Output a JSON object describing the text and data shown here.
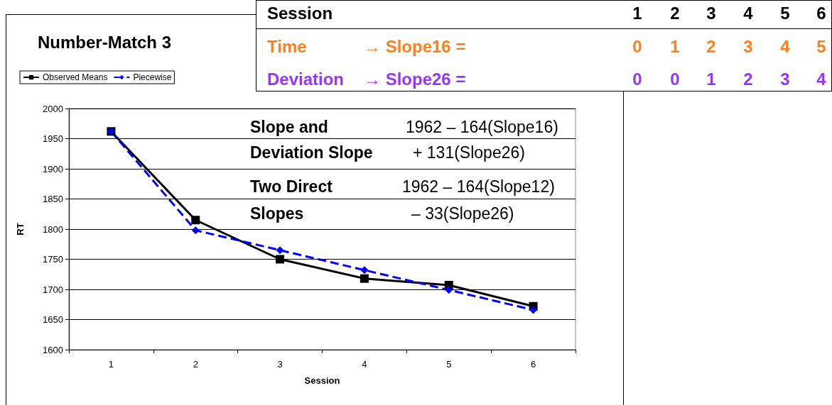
{
  "chart_data": {
    "type": "line",
    "title": "Number-Match 3",
    "xlabel": "Session",
    "ylabel": "RT",
    "categories": [
      "1",
      "2",
      "3",
      "4",
      "5",
      "6"
    ],
    "series": [
      {
        "name": "Observed Means",
        "color": "#000000",
        "marker": "square",
        "line_style": "solid",
        "values": [
          1962,
          1815,
          1750,
          1718,
          1707,
          1672
        ]
      },
      {
        "name": "Piecewise",
        "color": "#0000ff",
        "marker": "diamond",
        "line_style": "dashed",
        "values": [
          1962,
          1798,
          1765,
          1732,
          1699,
          1666
        ]
      }
    ],
    "ylim": [
      1600,
      2000
    ],
    "yticks": [
      1600,
      1650,
      1700,
      1750,
      1800,
      1850,
      1900,
      1950,
      2000
    ],
    "grid": "y",
    "legend": "top left",
    "annotations": [
      "Session",
      "1",
      "2",
      "3",
      "4",
      "5",
      "6",
      "Time",
      "→ Slope16  =",
      "0",
      "1",
      "2",
      "3",
      "4",
      "5",
      "Deviation",
      "→ Slope26  =",
      "0",
      "0",
      "1",
      "2",
      "3",
      "4",
      "Slope and",
      "1962 – 164(Slope16)",
      "Deviation Slope",
      "+ 131(Slope26)",
      "Two Direct",
      "1962 – 164(Slope12)",
      "Slopes",
      "–  33(Slope26)"
    ]
  }
}
